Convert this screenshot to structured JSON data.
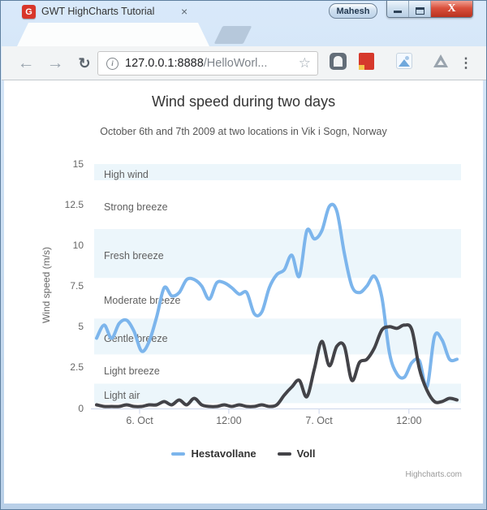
{
  "window": {
    "user_button": "Mahesh",
    "close_glyph": "X"
  },
  "browser": {
    "tab": {
      "favicon_letter": "G",
      "title": "GWT HighCharts Tutorial",
      "close_glyph": "×"
    },
    "toolbar": {
      "back_glyph": "←",
      "forward_glyph": "→",
      "reload_glyph": "↻",
      "info_glyph": "i",
      "url_host": "127.0.0.1:8888",
      "url_path": "/HelloWorl...",
      "star_glyph": "☆",
      "menu_glyph": "⋮"
    }
  },
  "chart_data": {
    "type": "line",
    "title": "Wind speed during two days",
    "subtitle": "October 6th and 7th 2009 at two locations in Vik i Sogn, Norway",
    "ylabel": "Wind speed (m/s)",
    "ylim": [
      0,
      15
    ],
    "grid": false,
    "legend_position": "bottom-center",
    "credits": "Highcharts.com",
    "point_interval_hours": 1,
    "y_ticks": [
      "0",
      "2.5",
      "5",
      "7.5",
      "10",
      "12.5",
      "15"
    ],
    "x_ticks": [
      {
        "label": "6. Oct",
        "pos": 0.124
      },
      {
        "label": "12:00",
        "pos": 0.367
      },
      {
        "label": "7. Oct",
        "pos": 0.613
      },
      {
        "label": "12:00",
        "pos": 0.858
      }
    ],
    "plot_bands": [
      {
        "label": "Light air",
        "from": 0.3,
        "to": 1.5,
        "shaded": true
      },
      {
        "label": "Light breeze",
        "from": 1.5,
        "to": 3.3,
        "shaded": false
      },
      {
        "label": "Gentle breeze",
        "from": 3.3,
        "to": 5.5,
        "shaded": true
      },
      {
        "label": "Moderate breeze",
        "from": 5.5,
        "to": 8,
        "shaded": false
      },
      {
        "label": "Fresh breeze",
        "from": 8,
        "to": 11,
        "shaded": true
      },
      {
        "label": "Strong breeze",
        "from": 11,
        "to": 14,
        "shaded": false
      },
      {
        "label": "High wind",
        "from": 14,
        "to": 15,
        "shaded": true
      }
    ],
    "band_fill": "#ecf6fb",
    "axis_line_color": "#ccd6eb",
    "series": [
      {
        "name": "Hestavollane",
        "color": "#7cb5ec",
        "values": [
          4.3,
          5.1,
          4.3,
          5.2,
          5.4,
          4.7,
          3.5,
          4.1,
          5.6,
          7.4,
          6.9,
          7.1,
          7.9,
          7.9,
          7.5,
          6.7,
          7.7,
          7.7,
          7.4,
          7.0,
          7.1,
          5.8,
          5.9,
          7.4,
          8.2,
          8.5,
          9.4,
          8.1,
          10.9,
          10.4,
          10.9,
          12.4,
          12.1,
          9.5,
          7.5,
          7.1,
          7.5,
          8.1,
          6.8,
          3.4,
          2.1,
          1.9,
          2.8,
          2.9,
          1.3,
          4.4,
          4.2,
          3.0,
          3.0
        ]
      },
      {
        "name": "Voll",
        "color": "#434348",
        "values": [
          0.2,
          0.1,
          0.1,
          0.1,
          0.2,
          0.1,
          0.1,
          0.2,
          0.2,
          0.4,
          0.2,
          0.5,
          0.2,
          0.6,
          0.2,
          0.1,
          0.1,
          0.2,
          0.1,
          0.2,
          0.1,
          0.1,
          0.2,
          0.1,
          0.2,
          0.8,
          1.3,
          1.7,
          0.7,
          2.4,
          4.1,
          2.6,
          3.8,
          3.8,
          1.7,
          2.8,
          3.0,
          3.7,
          4.8,
          5.0,
          4.9,
          5.1,
          4.8,
          2.4,
          1.1,
          0.4,
          0.4,
          0.6,
          0.5
        ]
      }
    ]
  }
}
